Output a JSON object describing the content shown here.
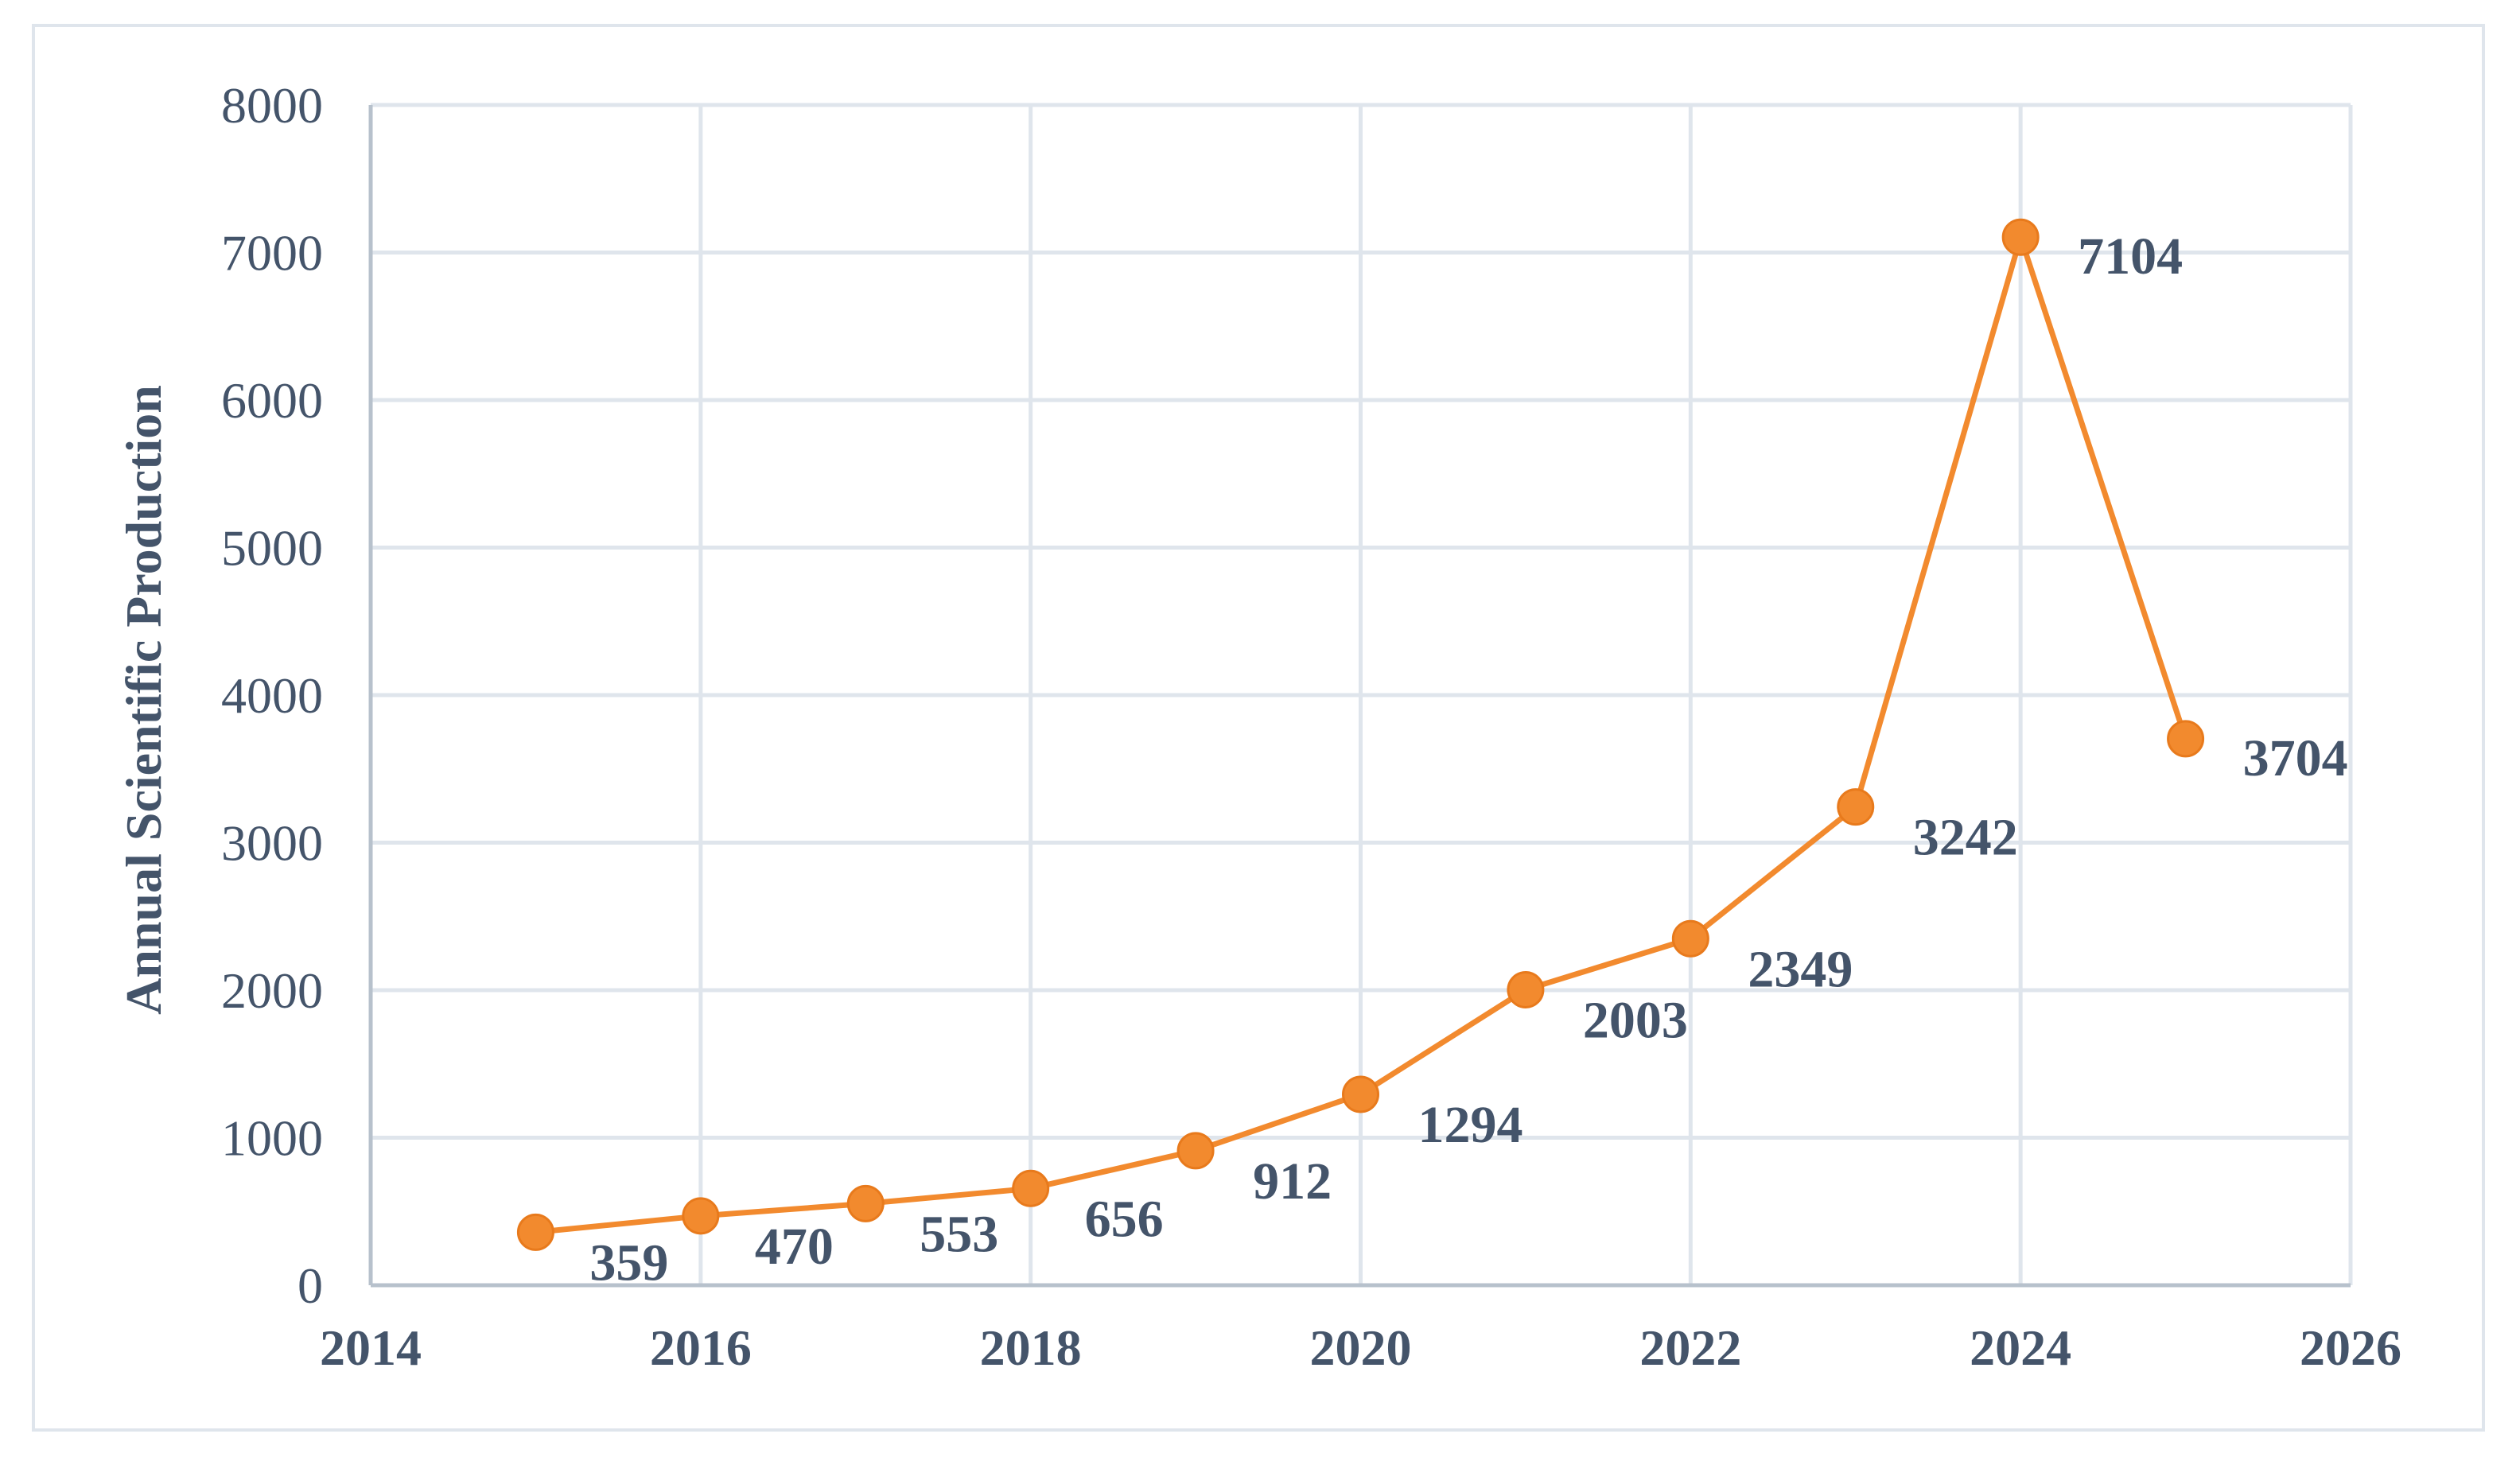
{
  "chart_data": {
    "type": "line",
    "title": "",
    "xlabel": "",
    "ylabel": "Annual Scientific Production",
    "x": [
      2015,
      2016,
      2017,
      2018,
      2019,
      2020,
      2021,
      2022,
      2023,
      2024,
      2025
    ],
    "series": [
      {
        "values": [
          359,
          470,
          553,
          656,
          912,
          1294,
          2003,
          2349,
          3242,
          7104,
          3704
        ],
        "color": "#f28a2e"
      }
    ],
    "data_labels": [
      "359",
      "470",
      "553",
      "656",
      "912",
      "1294",
      "2003",
      "2349",
      "3242",
      "7104",
      "3704"
    ],
    "xlim": [
      2014,
      2026
    ],
    "ylim": [
      0,
      8000
    ],
    "x_ticks": [
      "2014",
      "2016",
      "2018",
      "2020",
      "2022",
      "2024",
      "2026"
    ],
    "y_ticks": [
      "0",
      "1000",
      "2000",
      "3000",
      "4000",
      "5000",
      "6000",
      "7000",
      "8000"
    ],
    "grid": true,
    "legend": "none"
  }
}
